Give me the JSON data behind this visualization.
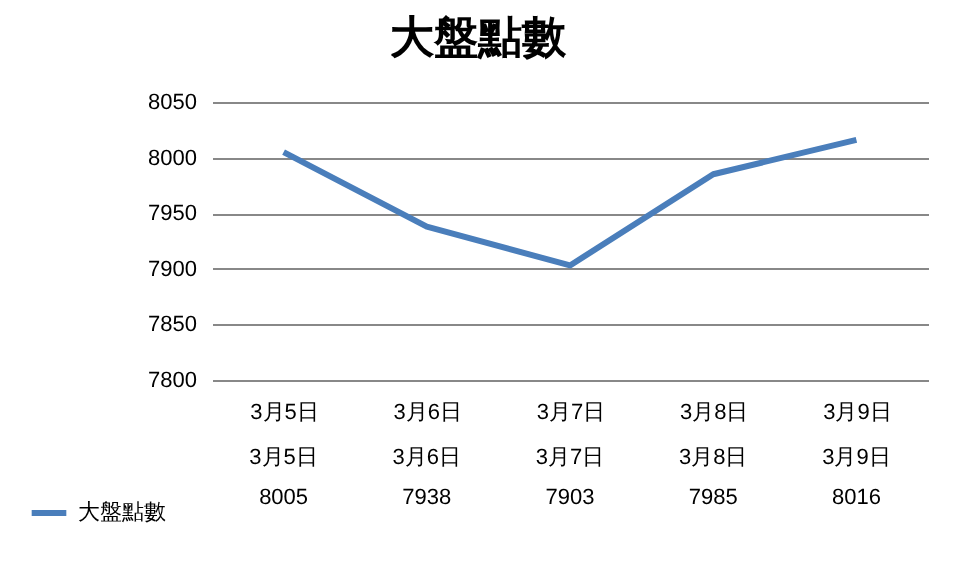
{
  "chart_data": {
    "type": "line",
    "title": "大盤點數",
    "categories": [
      "3月5日",
      "3月6日",
      "3月7日",
      "3月8日",
      "3月9日"
    ],
    "series": [
      {
        "name": "大盤點數",
        "color": "#4a7ebb",
        "values": [
          8005,
          7938,
          7903,
          7985,
          8016
        ]
      }
    ],
    "ylim": [
      7800,
      8050
    ],
    "yticks": [
      7800,
      7850,
      7900,
      7950,
      8000,
      8050
    ],
    "grid": "y",
    "legend": "bottom",
    "data_labels": true,
    "marker": "none",
    "line_style": "solid"
  }
}
